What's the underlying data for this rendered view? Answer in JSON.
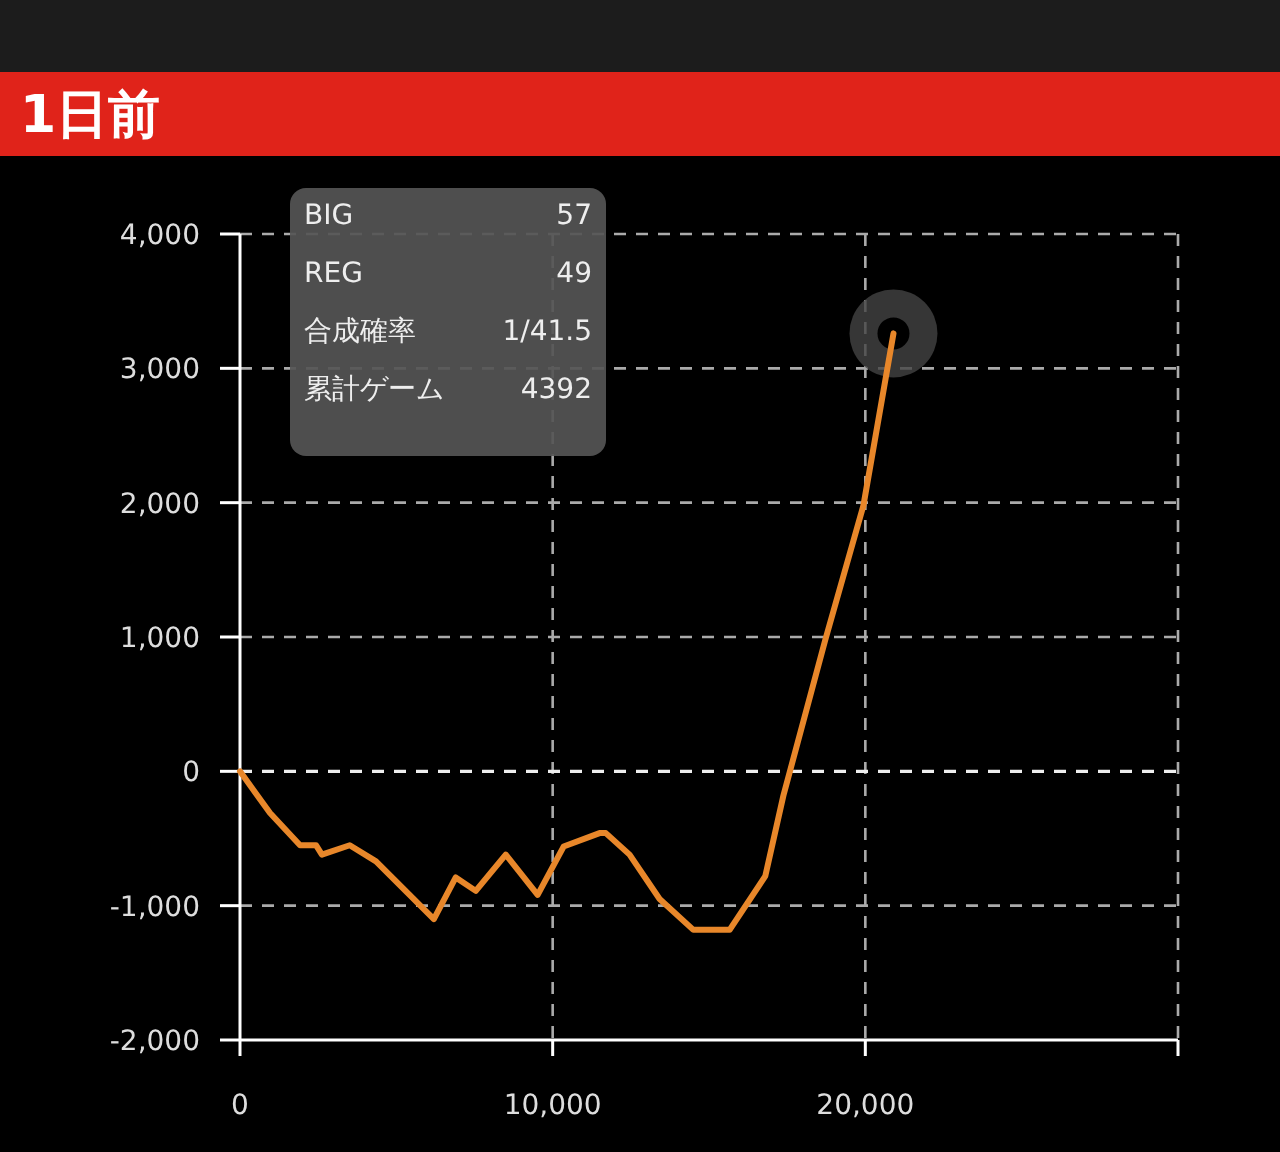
{
  "chart_data": {
    "type": "line",
    "title": "1日前",
    "x": [
      0,
      960,
      1920,
      2430,
      2620,
      3510,
      4350,
      6200,
      6900,
      7540,
      8500,
      9520,
      10350,
      11500,
      11700,
      12460,
      13420,
      14500,
      15660,
      16800,
      17380,
      18720,
      19940,
      20900
    ],
    "series": [
      {
        "color": "#e8872a",
        "values": [
          0,
          -310,
          -550,
          -550,
          -620,
          -550,
          -670,
          -1100,
          -790,
          -890,
          -620,
          -920,
          -560,
          -460,
          -460,
          -620,
          -950,
          -1180,
          -1180,
          -780,
          -180,
          980,
          1980,
          3260
        ]
      }
    ],
    "ref_lines": [
      {
        "axis": "y",
        "value": 0,
        "color": "#eeeeee",
        "line_style": "dashed"
      }
    ],
    "xlim": [
      0,
      30000
    ],
    "xticks": [
      {
        "value": 0,
        "label": "0"
      },
      {
        "value": 10000,
        "label": "10,000"
      },
      {
        "value": 20000,
        "label": "20,000"
      },
      {
        "value": 30000,
        "label": null
      }
    ],
    "ylim": [
      -2000,
      4000
    ],
    "yticks": [
      {
        "value": -2000,
        "label": "-2,000"
      },
      {
        "value": -1000,
        "label": "-1,000"
      },
      {
        "value": 0,
        "label": "0"
      },
      {
        "value": 1000,
        "label": "1,000"
      },
      {
        "value": 2000,
        "label": "2,000"
      },
      {
        "value": 3000,
        "label": "3,000"
      },
      {
        "value": 4000,
        "label": "4,000"
      }
    ],
    "grid": true,
    "marker": "none",
    "line_style": "solid",
    "annotations": [
      "BIG",
      "57",
      "REG",
      "49",
      "合成確率",
      "1/41.5",
      "累計ゲーム",
      "4392"
    ]
  }
}
